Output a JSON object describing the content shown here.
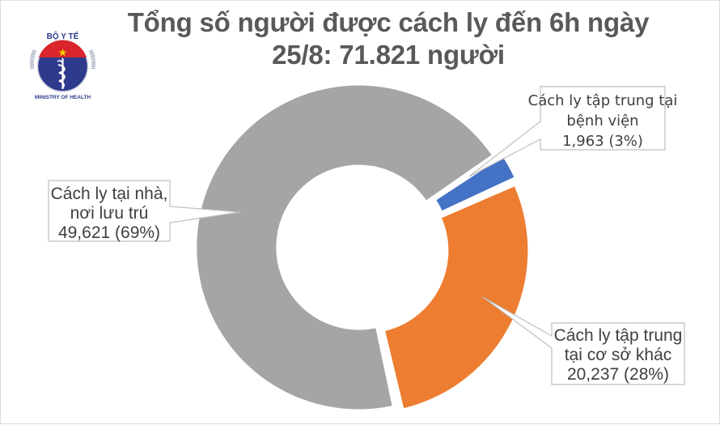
{
  "title": {
    "line1": "Tổng số người được cách ly đến 6h ngày",
    "line2": "25/8: 71.821 người"
  },
  "logo": {
    "top_text": "BỘ Y TẾ",
    "bottom_text": "MINISTRY OF HEALTH",
    "icon": "ministry-of-health-emblem"
  },
  "colors": {
    "home": "#a5a5a5",
    "hospital": "#4472c4",
    "facility": "#ed7d31",
    "title": "#595959",
    "label_text": "#404040",
    "label_border": "#bfbfbf"
  },
  "labels": {
    "home": {
      "line1": "Cách ly tại nhà,",
      "line2": "nơi lưu trú",
      "line3": "49,621 (69%)"
    },
    "hospital": {
      "line1": "Cách ly tập trung tại",
      "line2": "bệnh viện",
      "line3": "1,963 (3%)"
    },
    "facility": {
      "line1": "Cách ly tập trung",
      "line2": "tại cơ sở khác",
      "line3": "20,237 (28%)"
    }
  },
  "chart_data": {
    "type": "pie",
    "subtype": "doughnut",
    "title": "Tổng số người được cách ly đến 6h ngày 25/8: 71.821 người",
    "total": 71821,
    "categories": [
      "Cách ly tập trung tại bệnh viện",
      "Cách ly tập trung tại cơ sở khác",
      "Cách ly tại nhà, nơi lưu trú"
    ],
    "values": [
      1963,
      20237,
      49621
    ],
    "percentages": [
      3,
      28,
      69
    ],
    "colors": [
      "#4472c4",
      "#ed7d31",
      "#a5a5a5"
    ],
    "data_labels": [
      "1,963 (3%)",
      "20,237 (28%)",
      "49,621 (69%)"
    ],
    "exploded": true,
    "legend": "none"
  }
}
